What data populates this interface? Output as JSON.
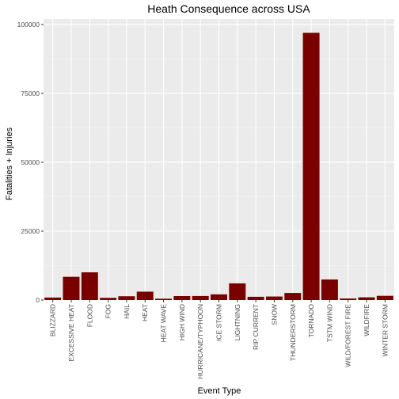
{
  "chart_data": {
    "type": "bar",
    "title": "Heath Consequence across USA",
    "xlabel": "Event Type",
    "ylabel": "Fatalities + Injuries",
    "ylim": [
      0,
      102000
    ],
    "yticks": [
      0,
      25000,
      50000,
      75000,
      100000
    ],
    "ytick_labels": [
      "0",
      "25000",
      "50000",
      "75000",
      "100000"
    ],
    "categories": [
      "BLIZZARD",
      "EXCESSIVE HEAT",
      "FLOOD",
      "FOG",
      "HAIL",
      "HEAT",
      "HEAT WAVE",
      "HIGH WIND",
      "HURRICANE/TYPHOON",
      "ICE STORM",
      "LIGHTNING",
      "RIP CURRENT",
      "SNOW",
      "THUNDERSTORM",
      "TORNADO",
      "TSTM WIND",
      "WILD/FOREST FIRE",
      "WILDFIRE",
      "WINTER STORM"
    ],
    "values": [
      906,
      8428,
      10064,
      796,
      1376,
      3037,
      481,
      1440,
      1461,
      2064,
      6046,
      1180,
      1278,
      2564,
      96979,
      7461,
      557,
      986,
      1527
    ],
    "bar_color": "#7a0000",
    "panel_color": "#ebebeb",
    "grid": true,
    "legend": "none"
  }
}
